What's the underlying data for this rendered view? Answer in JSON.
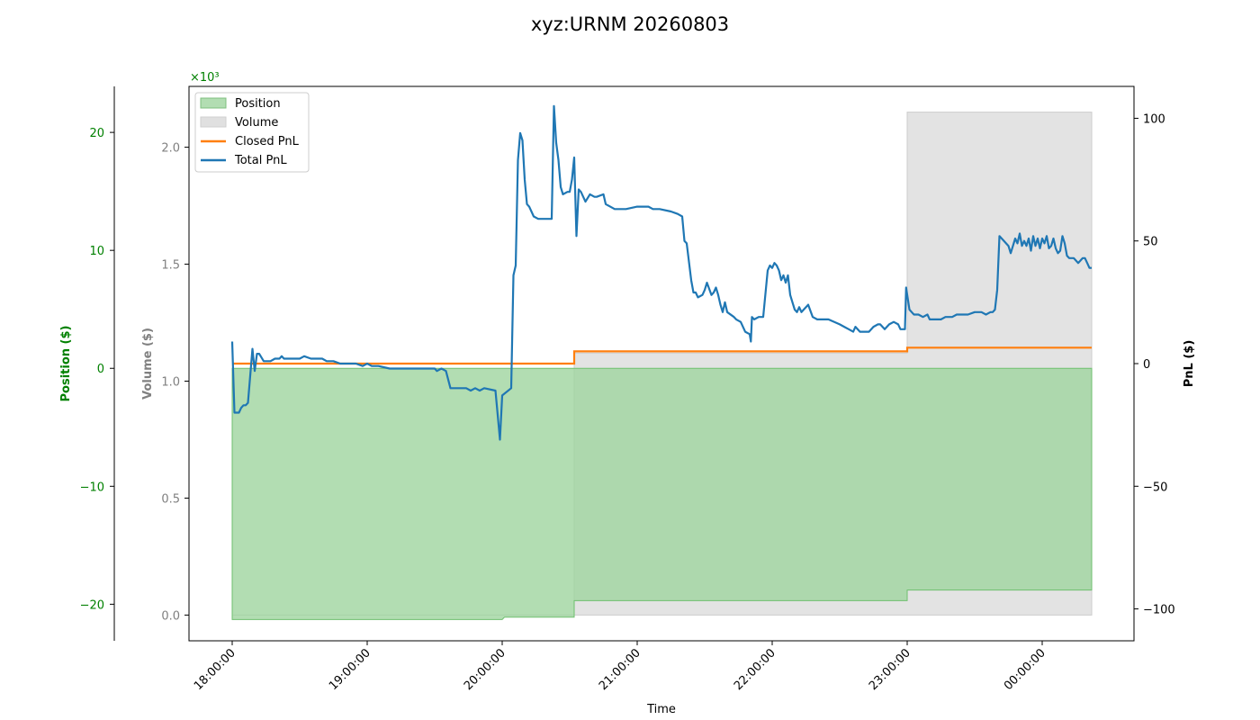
{
  "chart_data": {
    "type": "area",
    "title": "xyz:URNM 20260803",
    "xlabel": "Time",
    "x_ticks": [
      "18:00:00",
      "19:00:00",
      "20:00:00",
      "21:00:00",
      "22:00:00",
      "23:00:00",
      "00:00:00"
    ],
    "x_range": [
      "18:00:00",
      "00:38:00"
    ],
    "legend_position": "upper-left",
    "grid": false,
    "axes": {
      "position": {
        "label": "Position ($)",
        "color": "#008000",
        "ylim": [
          -23.1,
          23.9
        ],
        "ticks": [
          {
            "v": -20,
            "t": "−20"
          },
          {
            "v": -10,
            "t": "−10"
          },
          {
            "v": 0,
            "t": "0"
          },
          {
            "v": 10,
            "t": "10"
          },
          {
            "v": 20,
            "t": "20"
          }
        ]
      },
      "volume": {
        "label": "Volume ($)",
        "color": "#808080",
        "ylim": [
          -0.11,
          2.26
        ],
        "multiplier": "×10³",
        "ticks": [
          {
            "v": 0,
            "t": "0.0"
          },
          {
            "v": 0.5,
            "t": "0.5"
          },
          {
            "v": 1.0,
            "t": "1.0"
          },
          {
            "v": 1.5,
            "t": "1.5"
          },
          {
            "v": 2.0,
            "t": "2.0"
          }
        ]
      },
      "pnl": {
        "label": "PnL ($)",
        "color": "#000000",
        "ylim": [
          -113,
          113
        ],
        "ticks": [
          {
            "v": -100,
            "t": "−100"
          },
          {
            "v": -50,
            "t": "−50"
          },
          {
            "v": 0,
            "t": "0"
          },
          {
            "v": 50,
            "t": "50"
          },
          {
            "v": 100,
            "t": "100"
          }
        ]
      }
    },
    "series": [
      {
        "name": "Position",
        "kind": "area",
        "axis": "position",
        "color": "#9fd49f",
        "points": [
          [
            0,
            0
          ],
          [
            0,
            -21.3
          ],
          [
            60,
            -21.3
          ],
          [
            120,
            -21.3
          ],
          [
            121,
            -21.1
          ],
          [
            152,
            -21.1
          ],
          [
            152,
            -19.7
          ],
          [
            270,
            -19.7
          ],
          [
            300,
            -19.7
          ],
          [
            300,
            -18.8
          ],
          [
            382,
            -18.8
          ]
        ]
      },
      {
        "name": "Volume",
        "kind": "area",
        "axis": "volume",
        "color": "#d9d9d9",
        "points": [
          [
            0,
            0
          ],
          [
            152,
            0
          ],
          [
            152,
            1.12
          ],
          [
            300,
            1.12
          ],
          [
            300,
            2.15
          ],
          [
            382,
            2.15
          ],
          [
            382,
            0
          ]
        ]
      },
      {
        "name": "Closed PnL",
        "kind": "step",
        "axis": "pnl",
        "color": "#ff7f0e",
        "points": [
          [
            0,
            0
          ],
          [
            152,
            0
          ],
          [
            152,
            5
          ],
          [
            300,
            5
          ],
          [
            300,
            6.5
          ],
          [
            382,
            6.5
          ]
        ]
      },
      {
        "name": "Total PnL",
        "kind": "line",
        "axis": "pnl",
        "color": "#1f77b4",
        "points": [
          [
            0,
            9
          ],
          [
            1,
            -20
          ],
          [
            3,
            -20
          ],
          [
            4,
            -18
          ],
          [
            5,
            -17
          ],
          [
            6,
            -17
          ],
          [
            7,
            -16
          ],
          [
            8,
            -5
          ],
          [
            9,
            6
          ],
          [
            10,
            -3
          ],
          [
            11,
            4
          ],
          [
            12,
            4
          ],
          [
            14,
            1
          ],
          [
            17,
            1
          ],
          [
            19,
            2
          ],
          [
            21,
            2
          ],
          [
            22,
            3
          ],
          [
            23,
            2
          ],
          [
            25,
            2
          ],
          [
            30,
            2
          ],
          [
            32,
            3
          ],
          [
            35,
            2
          ],
          [
            40,
            2
          ],
          [
            42,
            1
          ],
          [
            45,
            1
          ],
          [
            48,
            0
          ],
          [
            55,
            0
          ],
          [
            58,
            -1
          ],
          [
            60,
            0
          ],
          [
            62,
            -1
          ],
          [
            65,
            -1
          ],
          [
            70,
            -2
          ],
          [
            80,
            -2
          ],
          [
            90,
            -2
          ],
          [
            91,
            -3
          ],
          [
            93,
            -2
          ],
          [
            95,
            -3
          ],
          [
            97,
            -10
          ],
          [
            98,
            -10
          ],
          [
            100,
            -10
          ],
          [
            104,
            -10
          ],
          [
            106,
            -11
          ],
          [
            108,
            -10
          ],
          [
            110,
            -11
          ],
          [
            112,
            -10
          ],
          [
            117,
            -11
          ],
          [
            119,
            -31
          ],
          [
            120,
            -13
          ],
          [
            124,
            -10
          ],
          [
            125,
            36
          ],
          [
            126,
            40
          ],
          [
            127,
            83
          ],
          [
            128,
            94
          ],
          [
            129,
            91
          ],
          [
            130,
            75
          ],
          [
            131,
            65
          ],
          [
            132,
            64
          ],
          [
            134,
            60
          ],
          [
            136,
            59
          ],
          [
            142,
            59
          ],
          [
            143,
            105
          ],
          [
            144,
            90
          ],
          [
            145,
            83
          ],
          [
            146,
            72
          ],
          [
            147,
            69
          ],
          [
            149,
            70
          ],
          [
            150,
            70
          ],
          [
            151,
            75
          ],
          [
            152,
            84
          ],
          [
            153,
            52
          ],
          [
            154,
            71
          ],
          [
            155,
            70
          ],
          [
            157,
            66
          ],
          [
            159,
            69
          ],
          [
            161,
            68
          ],
          [
            162,
            68
          ],
          [
            165,
            69
          ],
          [
            166,
            65
          ],
          [
            168,
            64
          ],
          [
            170,
            63
          ],
          [
            175,
            63
          ],
          [
            180,
            64
          ],
          [
            185,
            64
          ],
          [
            187,
            63
          ],
          [
            190,
            63
          ],
          [
            195,
            62
          ],
          [
            198,
            61
          ],
          [
            200,
            60
          ],
          [
            201,
            50
          ],
          [
            202,
            49
          ],
          [
            204,
            34
          ],
          [
            205,
            29
          ],
          [
            206,
            29
          ],
          [
            207,
            27
          ],
          [
            209,
            28
          ],
          [
            210,
            30
          ],
          [
            211,
            33
          ],
          [
            213,
            28
          ],
          [
            214,
            29
          ],
          [
            215,
            31
          ],
          [
            216,
            28
          ],
          [
            217,
            24
          ],
          [
            218,
            21
          ],
          [
            219,
            25
          ],
          [
            220,
            21
          ],
          [
            223,
            19
          ],
          [
            224,
            18
          ],
          [
            226,
            17
          ],
          [
            228,
            13
          ],
          [
            230,
            12
          ],
          [
            230.5,
            9
          ],
          [
            231,
            19
          ],
          [
            232,
            18
          ],
          [
            234,
            19
          ],
          [
            236,
            19
          ],
          [
            238,
            38
          ],
          [
            239,
            40
          ],
          [
            240,
            39
          ],
          [
            241,
            41
          ],
          [
            242,
            40
          ],
          [
            243,
            38
          ],
          [
            244,
            34
          ],
          [
            245,
            36
          ],
          [
            246,
            33
          ],
          [
            247,
            36
          ],
          [
            248,
            28
          ],
          [
            249,
            25
          ],
          [
            250,
            22
          ],
          [
            251,
            21
          ],
          [
            252,
            23
          ],
          [
            253,
            21
          ],
          [
            254,
            22
          ],
          [
            256,
            24
          ],
          [
            258,
            19
          ],
          [
            260,
            18
          ],
          [
            265,
            18
          ],
          [
            270,
            16
          ],
          [
            272,
            15
          ],
          [
            274,
            14
          ],
          [
            276,
            13
          ],
          [
            277,
            15
          ],
          [
            279,
            13
          ],
          [
            283,
            13
          ],
          [
            285,
            15
          ],
          [
            287,
            16
          ],
          [
            288,
            16
          ],
          [
            290,
            14
          ],
          [
            292,
            16
          ],
          [
            294,
            17
          ],
          [
            296,
            16
          ],
          [
            297,
            14
          ],
          [
            299,
            14
          ],
          [
            299.5,
            31
          ],
          [
            301,
            22
          ],
          [
            302,
            21
          ],
          [
            303,
            20
          ],
          [
            305,
            20
          ],
          [
            307,
            19
          ],
          [
            309,
            20
          ],
          [
            310,
            18
          ],
          [
            312,
            18
          ],
          [
            315,
            18
          ],
          [
            317,
            19
          ],
          [
            320,
            19
          ],
          [
            322,
            20
          ],
          [
            325,
            20
          ],
          [
            327,
            20
          ],
          [
            330,
            21
          ],
          [
            333,
            21
          ],
          [
            335,
            20
          ],
          [
            337,
            21
          ],
          [
            338,
            21
          ],
          [
            339,
            22
          ],
          [
            340,
            30
          ],
          [
            341,
            52
          ],
          [
            343,
            50
          ],
          [
            345,
            48
          ],
          [
            346,
            45
          ],
          [
            347,
            48
          ],
          [
            348,
            51
          ],
          [
            349,
            49
          ],
          [
            350,
            53
          ],
          [
            351,
            48
          ],
          [
            352,
            50
          ],
          [
            353,
            48
          ],
          [
            354,
            51
          ],
          [
            355,
            46
          ],
          [
            356,
            52
          ],
          [
            357,
            48
          ],
          [
            358,
            51
          ],
          [
            359,
            47
          ],
          [
            360,
            51
          ],
          [
            361,
            49
          ],
          [
            362,
            52
          ],
          [
            363,
            47
          ],
          [
            364,
            48
          ],
          [
            365,
            51
          ],
          [
            366,
            47
          ],
          [
            367,
            45
          ],
          [
            368,
            46
          ],
          [
            369,
            52
          ],
          [
            370,
            49
          ],
          [
            371,
            44
          ],
          [
            372,
            43
          ],
          [
            373,
            43
          ],
          [
            374,
            43
          ],
          [
            375,
            42
          ],
          [
            376,
            41
          ],
          [
            377,
            42
          ],
          [
            378,
            43
          ],
          [
            379,
            43
          ],
          [
            380,
            41
          ],
          [
            381,
            39
          ],
          [
            382,
            39
          ]
        ]
      }
    ]
  }
}
